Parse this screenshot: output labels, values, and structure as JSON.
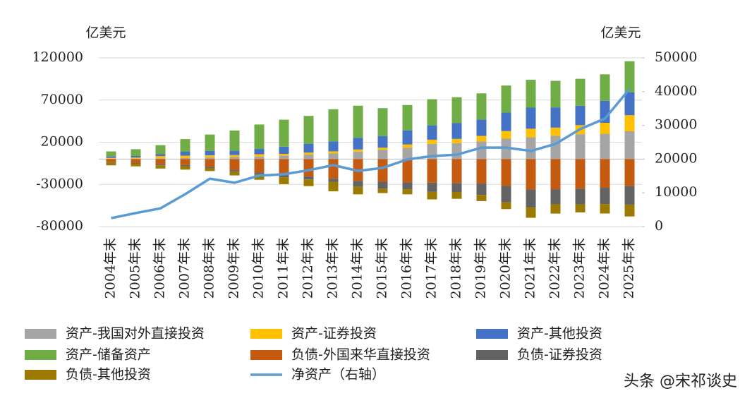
{
  "chart_data": {
    "type": "stacked_bar_line",
    "y_unit_label": "亿美元",
    "y2_unit_label": "亿美元",
    "categories": [
      "2004年末",
      "2005年末",
      "2006年末",
      "2007年末",
      "2008年末",
      "2009年末",
      "2010年末",
      "2011年末",
      "2012年末",
      "2013年末",
      "2014年末",
      "2015年末",
      "2016年末",
      "2017年末",
      "2018年末",
      "2019年末",
      "2020年末",
      "2021年末",
      "2022年末",
      "2023年末",
      "2024年末",
      "2025年末"
    ],
    "ylim": [
      -80000,
      120000
    ],
    "yticks": [
      -80000,
      -30000,
      20000,
      70000,
      120000
    ],
    "y2lim": [
      0,
      50000
    ],
    "y2ticks": [
      0,
      10000,
      20000,
      30000,
      40000,
      50000
    ],
    "grid": true,
    "series": [
      {
        "name": "资产-我国对外直接投资",
        "color": "#a5a5a5",
        "values": [
          500,
          600,
          900,
          1200,
          1900,
          2400,
          3100,
          4200,
          5300,
          6600,
          8800,
          10900,
          13600,
          18100,
          18900,
          20900,
          24200,
          26000,
          27500,
          29500,
          30000,
          33000
        ]
      },
      {
        "name": "资产-证券投资",
        "color": "#ffc000",
        "values": [
          900,
          1200,
          2600,
          2800,
          2500,
          2400,
          2600,
          2000,
          2400,
          2600,
          2600,
          2600,
          3700,
          4900,
          5000,
          6600,
          9000,
          10000,
          9800,
          10700,
          13000,
          19000
        ]
      },
      {
        "name": "资产-其他投资",
        "color": "#4472c4",
        "values": [
          1700,
          1900,
          2500,
          4700,
          5200,
          5100,
          6300,
          8500,
          10500,
          11900,
          13900,
          13900,
          16800,
          17000,
          18700,
          19400,
          22000,
          25000,
          24000,
          23000,
          26000,
          27000
        ]
      },
      {
        "name": "资产-储备资产",
        "color": "#70ad47",
        "values": [
          6000,
          8000,
          10500,
          15000,
          19500,
          24000,
          29000,
          32000,
          33000,
          38000,
          38000,
          33000,
          30000,
          31000,
          30700,
          31000,
          32000,
          33000,
          31500,
          32000,
          31500,
          37000
        ]
      },
      {
        "name": "负债-外国来华直接投资",
        "color": "#c55a11",
        "values": [
          -3700,
          -4700,
          -6100,
          -7000,
          -9200,
          -13100,
          -15700,
          -19100,
          -20700,
          -23300,
          -25900,
          -26900,
          -27600,
          -28000,
          -28300,
          -29000,
          -31800,
          -36000,
          -35700,
          -35100,
          -34000,
          -32000
        ]
      },
      {
        "name": "负债-证券投资",
        "color": "#636363",
        "values": [
          -800,
          -800,
          -1200,
          -1500,
          -1700,
          -1900,
          -2200,
          -2500,
          -3400,
          -3900,
          -7000,
          -8200,
          -8100,
          -10900,
          -10700,
          -13500,
          -19500,
          -21600,
          -17900,
          -18600,
          -19500,
          -22000
        ]
      },
      {
        "name": "负债-其他投资",
        "color": "#9c7a00",
        "values": [
          -2900,
          -3100,
          -3900,
          -4000,
          -3300,
          -4400,
          -6600,
          -8100,
          -8000,
          -11000,
          -8900,
          -5200,
          -6100,
          -8900,
          -8100,
          -7300,
          -8000,
          -12000,
          -11000,
          -9500,
          -11000,
          -14000
        ]
      },
      {
        "name": "净资产（右轴）",
        "color": "#5b9bd5",
        "axis": "y2",
        "values": [
          2500,
          4000,
          5400,
          9600,
          14200,
          13000,
          15100,
          15500,
          16700,
          18200,
          16500,
          17400,
          19900,
          20900,
          21300,
          23400,
          23400,
          22400,
          24500,
          28900,
          32000,
          40800
        ]
      }
    ],
    "watermark": "头条 @宋祁谈史"
  }
}
